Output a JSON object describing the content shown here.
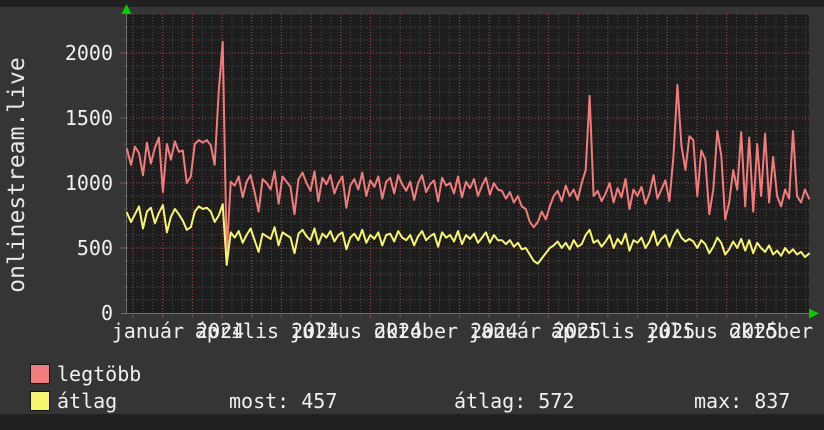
{
  "page": {
    "background": "#212121",
    "widget_background": "#353535"
  },
  "chart": {
    "legend": {
      "series": [
        {
          "label": "legtöbb",
          "color": "#f17c7c"
        },
        {
          "label": "átlag",
          "color": "#f6f66e"
        }
      ],
      "stats": [
        {
          "label": "most",
          "value": 457,
          "display": "most: 457"
        },
        {
          "label": "átlag",
          "value": 572,
          "display": "átlag: 572"
        },
        {
          "label": "max",
          "value": 837,
          "display": "max: 837"
        }
      ]
    }
  },
  "chart_data": {
    "type": "line",
    "title": "onlinestream.live",
    "ylim": [
      0,
      2300
    ],
    "y_ticks": [
      0,
      500,
      1000,
      1500,
      2000
    ],
    "y_tick_labels": [
      "0",
      "500",
      "1000",
      "1500",
      "2000"
    ],
    "x_tick_labels": [
      {
        "text": "január 2024",
        "center": 178
      },
      {
        "text": "április 2024",
        "center": 267
      },
      {
        "text": "július 2024",
        "center": 356
      },
      {
        "text": "október 2024",
        "center": 446
      },
      {
        "text": "január 2025",
        "center": 535
      },
      {
        "text": "április 2025",
        "center": 623
      },
      {
        "text": "július 2025",
        "center": 712
      },
      {
        "text": "október 2025",
        "center": 801
      }
    ],
    "grid": {
      "major_color": "#a84848",
      "minor_color": "#4b4b4b",
      "on": true
    },
    "plot_bg": "#1d1d1d",
    "axis_color": "#6f6f6f",
    "arrow_color": "#00cc00",
    "legend_position": "bottom-left",
    "stats": {
      "most": 457,
      "atlag": 572,
      "max": 837
    },
    "series": [
      {
        "name": "legtöbb",
        "color": "#f17c7c",
        "values": [
          1260,
          1140,
          1280,
          1230,
          1060,
          1310,
          1150,
          1270,
          1350,
          930,
          1300,
          1180,
          1320,
          1240,
          1250,
          1000,
          1050,
          1300,
          1330,
          1310,
          1330,
          1290,
          1140,
          1700,
          2085,
          450,
          1010,
          980,
          1050,
          890,
          1010,
          1060,
          930,
          780,
          1030,
          1000,
          950,
          1090,
          840,
          1050,
          1010,
          970,
          760,
          1030,
          1080,
          1000,
          940,
          1090,
          860,
          1040,
          990,
          1060,
          920,
          1000,
          1050,
          810,
          980,
          1030,
          950,
          1080,
          900,
          1020,
          970,
          1050,
          880,
          1010,
          1040,
          920,
          1060,
          990,
          940,
          1010,
          870,
          1000,
          1060,
          930,
          990,
          1020,
          860,
          1040,
          980,
          1000,
          920,
          1050,
          890,
          1010,
          960,
          1030,
          900,
          980,
          1040,
          910,
          1000,
          950,
          940,
          880,
          930,
          850,
          900,
          820,
          800,
          700,
          660,
          700,
          780,
          720,
          820,
          900,
          940,
          860,
          980,
          900,
          950,
          870,
          1000,
          1100,
          1670,
          900,
          940,
          860,
          920,
          1000,
          850,
          960,
          890,
          1030,
          800,
          950,
          900,
          970,
          840,
          920,
          1060,
          880,
          950,
          1020,
          860,
          1200,
          1754,
          1290,
          1100,
          1360,
          1330,
          900,
          1250,
          1180,
          760,
          950,
          1400,
          1210,
          720,
          850,
          1100,
          950,
          1390,
          820,
          1350,
          780,
          1300,
          900,
          1380,
          850,
          1200,
          900,
          820,
          950,
          880,
          1400,
          900,
          850,
          950,
          880
        ]
      },
      {
        "name": "átlag",
        "color": "#f6f66e",
        "values": [
          770,
          700,
          760,
          820,
          650,
          780,
          810,
          690,
          770,
          830,
          620,
          740,
          800,
          760,
          710,
          640,
          660,
          780,
          820,
          800,
          810,
          780,
          700,
          750,
          837,
          370,
          620,
          580,
          630,
          540,
          600,
          650,
          560,
          470,
          610,
          590,
          570,
          660,
          520,
          620,
          600,
          580,
          460,
          610,
          640,
          590,
          560,
          650,
          530,
          610,
          580,
          630,
          550,
          600,
          620,
          490,
          580,
          610,
          560,
          640,
          540,
          600,
          570,
          620,
          520,
          600,
          610,
          550,
          630,
          580,
          560,
          600,
          520,
          590,
          630,
          560,
          590,
          610,
          510,
          620,
          580,
          600,
          550,
          630,
          530,
          600,
          570,
          610,
          540,
          580,
          620,
          540,
          600,
          560,
          560,
          530,
          560,
          510,
          540,
          490,
          500,
          450,
          400,
          380,
          420,
          460,
          500,
          520,
          550,
          500,
          540,
          490,
          560,
          510,
          530,
          600,
          640,
          540,
          560,
          510,
          550,
          600,
          500,
          570,
          530,
          610,
          480,
          560,
          540,
          580,
          500,
          550,
          630,
          520,
          570,
          600,
          510,
          590,
          640,
          580,
          550,
          570,
          550,
          500,
          560,
          530,
          460,
          510,
          580,
          540,
          450,
          490,
          550,
          500,
          570,
          480,
          560,
          460,
          540,
          500,
          470,
          520,
          450,
          480,
          440,
          500,
          460,
          490,
          450,
          470,
          430,
          457
        ]
      }
    ]
  }
}
